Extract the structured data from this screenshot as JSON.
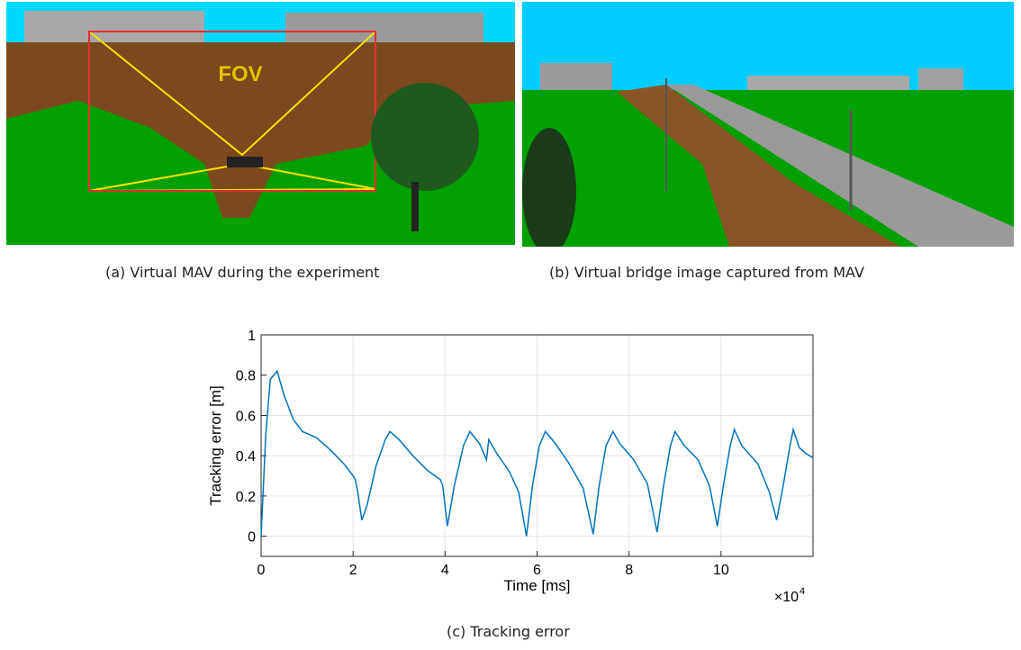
{
  "figure": {
    "panel_a": {
      "caption": "(a)  Virtual MAV during the experiment",
      "overlay_label": "FOV"
    },
    "panel_b": {
      "caption": "(b)  Virtual bridge image captured from MAV"
    },
    "panel_c": {
      "caption": "(c)  Tracking error"
    }
  },
  "chart_data": {
    "type": "line",
    "xlabel": "Time [ms]",
    "ylabel": "Tracking error [m]",
    "x_scale_label": "×10",
    "x_scale_exponent": "4",
    "x": [
      0,
      0.1,
      0.2,
      0.35,
      0.5,
      0.7,
      0.9,
      1.2,
      1.5,
      1.8,
      2.0,
      2.05,
      2.1,
      2.19,
      2.3,
      2.5,
      2.7,
      2.8,
      3.0,
      3.3,
      3.6,
      3.9,
      3.95,
      4.05,
      4.2,
      4.4,
      4.54,
      4.75,
      4.9,
      4.95,
      5.1,
      5.4,
      5.6,
      5.77,
      5.9,
      6.05,
      6.18,
      6.4,
      6.7,
      7.0,
      7.22,
      7.35,
      7.5,
      7.65,
      7.8,
      8.1,
      8.4,
      8.61,
      8.75,
      8.9,
      9.0,
      9.2,
      9.5,
      9.75,
      9.92,
      10.05,
      10.2,
      10.29,
      10.45,
      10.8,
      11.05,
      11.21,
      11.35,
      11.5,
      11.57,
      11.7,
      11.85,
      12
    ],
    "series": [
      {
        "color": "#0072bd",
        "values": [
          0,
          0.5,
          0.78,
          0.82,
          0.7,
          0.58,
          0.52,
          0.49,
          0.43,
          0.36,
          0.3,
          0.28,
          0.22,
          0.08,
          0.15,
          0.35,
          0.48,
          0.52,
          0.48,
          0.4,
          0.33,
          0.28,
          0.25,
          0.05,
          0.25,
          0.45,
          0.52,
          0.46,
          0.38,
          0.48,
          0.42,
          0.32,
          0.22,
          0.0,
          0.25,
          0.45,
          0.52,
          0.46,
          0.36,
          0.24,
          0.01,
          0.25,
          0.45,
          0.52,
          0.46,
          0.38,
          0.26,
          0.02,
          0.25,
          0.45,
          0.52,
          0.45,
          0.38,
          0.25,
          0.05,
          0.25,
          0.45,
          0.53,
          0.45,
          0.36,
          0.22,
          0.08,
          0.25,
          0.45,
          0.53,
          0.44,
          0.41,
          0.39
        ]
      }
    ],
    "xlim": [
      0,
      12
    ],
    "xticks": [
      0,
      2,
      4,
      6,
      8,
      10
    ],
    "ylim": [
      -0.1,
      1
    ],
    "yticks": [
      0,
      0.2,
      0.4,
      0.6,
      0.8,
      1
    ],
    "grid": true
  }
}
